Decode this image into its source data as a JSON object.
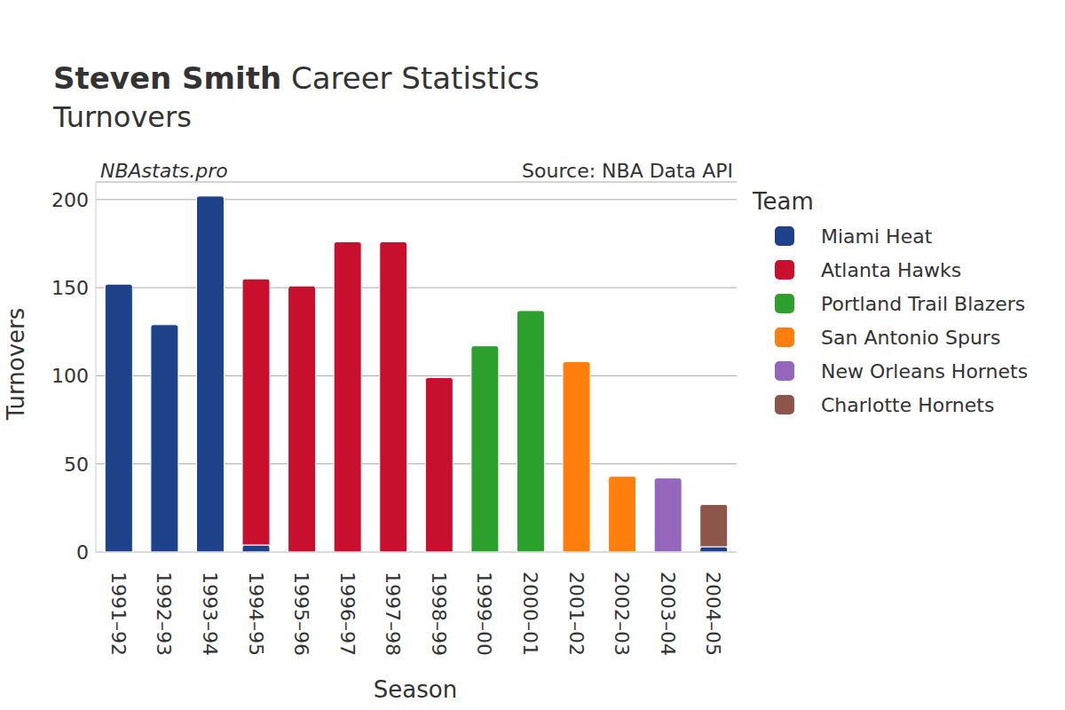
{
  "chart_data": {
    "type": "bar",
    "title": "Steven Smith Career Statistics",
    "subtitle": "Turnovers",
    "annotations": [
      "NBAstats.pro",
      "Source: NBA Data API"
    ],
    "x_label": "Season",
    "y_label": "Turnovers",
    "legend_title": "Team",
    "categories": [
      "1991–92",
      "1992–93",
      "1993–94",
      "1994–95",
      "1995–96",
      "1996–97",
      "1997–98",
      "1998–99",
      "1999–00",
      "2000–01",
      "2001–02",
      "2002–03",
      "2003–04",
      "2004–05"
    ],
    "series": [
      {
        "name": "Miami Heat",
        "color": "#1d428a",
        "values": [
          152,
          129,
          202,
          4,
          null,
          null,
          null,
          null,
          null,
          null,
          null,
          null,
          null,
          3
        ]
      },
      {
        "name": "Atlanta Hawks",
        "color": "#c8102e",
        "values": [
          null,
          null,
          null,
          151,
          151,
          176,
          176,
          99,
          null,
          null,
          null,
          null,
          null,
          null
        ]
      },
      {
        "name": "Portland Trail Blazers",
        "color": "#2ca02c",
        "values": [
          null,
          null,
          null,
          null,
          null,
          null,
          null,
          null,
          117,
          137,
          null,
          null,
          null,
          null
        ]
      },
      {
        "name": "San Antonio Spurs",
        "color": "#ff7f0e",
        "values": [
          null,
          null,
          null,
          null,
          null,
          null,
          null,
          null,
          null,
          null,
          108,
          43,
          null,
          null
        ]
      },
      {
        "name": "New Orleans Hornets",
        "color": "#9467bd",
        "values": [
          null,
          null,
          null,
          null,
          null,
          null,
          null,
          null,
          null,
          null,
          null,
          null,
          42,
          null
        ]
      },
      {
        "name": "Charlotte Hornets",
        "color": "#8c564b",
        "values": [
          null,
          null,
          null,
          null,
          null,
          null,
          null,
          null,
          null,
          null,
          null,
          null,
          null,
          24
        ]
      }
    ],
    "ylim": [
      0,
      210
    ],
    "yticks": [
      0,
      50,
      100,
      150,
      200
    ],
    "grid": true,
    "stacked": true,
    "legend": "right"
  }
}
